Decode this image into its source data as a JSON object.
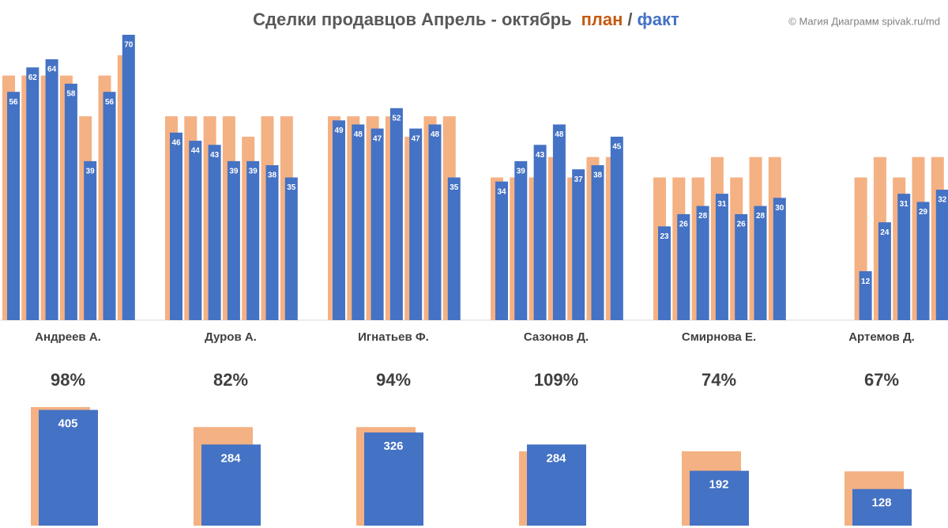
{
  "chart_data": [
    {
      "type": "grouped-bar",
      "title": "Сделки продавцов Апрель - октябрь",
      "legend_separator": "/",
      "source": "© Магия Диаграмм spivak.ru/md",
      "categories": [
        "Андреев А.",
        "Дуров А.",
        "Игнатьев Ф.",
        "Сазонов Д.",
        "Смирнова Е.",
        "Артемов Д."
      ],
      "series": [
        {
          "name": "план",
          "color": "#f4b183",
          "legend_color": "#c55a11",
          "values": [
            [
              60,
              60,
              60,
              60,
              50,
              60,
              65
            ],
            [
              50,
              50,
              50,
              50,
              45,
              50,
              50
            ],
            [
              50,
              50,
              50,
              50,
              45,
              50,
              50
            ],
            [
              35,
              35,
              35,
              40,
              35,
              40,
              40
            ],
            [
              35,
              35,
              35,
              40,
              35,
              40,
              40
            ],
            [
              null,
              null,
              35,
              40,
              35,
              40,
              40
            ]
          ]
        },
        {
          "name": "факт",
          "color": "#4472c4",
          "legend_color": "#4472c4",
          "values": [
            [
              56,
              62,
              64,
              58,
              39,
              56,
              70
            ],
            [
              46,
              44,
              43,
              39,
              39,
              38,
              35
            ],
            [
              49,
              48,
              47,
              52,
              47,
              48,
              35
            ],
            [
              34,
              39,
              43,
              48,
              37,
              38,
              45
            ],
            [
              23,
              26,
              28,
              31,
              26,
              28,
              30
            ],
            [
              null,
              null,
              12,
              24,
              31,
              29,
              32
            ]
          ]
        }
      ],
      "ylim": [
        0,
        70
      ]
    },
    {
      "type": "total-bar",
      "ratio": {
        "values": [
          98,
          82,
          94,
          109,
          74,
          67
        ],
        "value_labels": [
          "98%",
          "82%",
          "94%",
          "109%",
          "74%",
          "67%"
        ]
      },
      "series": [
        {
          "name": "план",
          "color": "#f4b183",
          "values": [
            415,
            345,
            345,
            260,
            260,
            190
          ]
        },
        {
          "name": "факт",
          "color": "#4472c4",
          "values": [
            405,
            284,
            326,
            284,
            192,
            128
          ]
        }
      ],
      "ylim": [
        0,
        415
      ]
    }
  ]
}
